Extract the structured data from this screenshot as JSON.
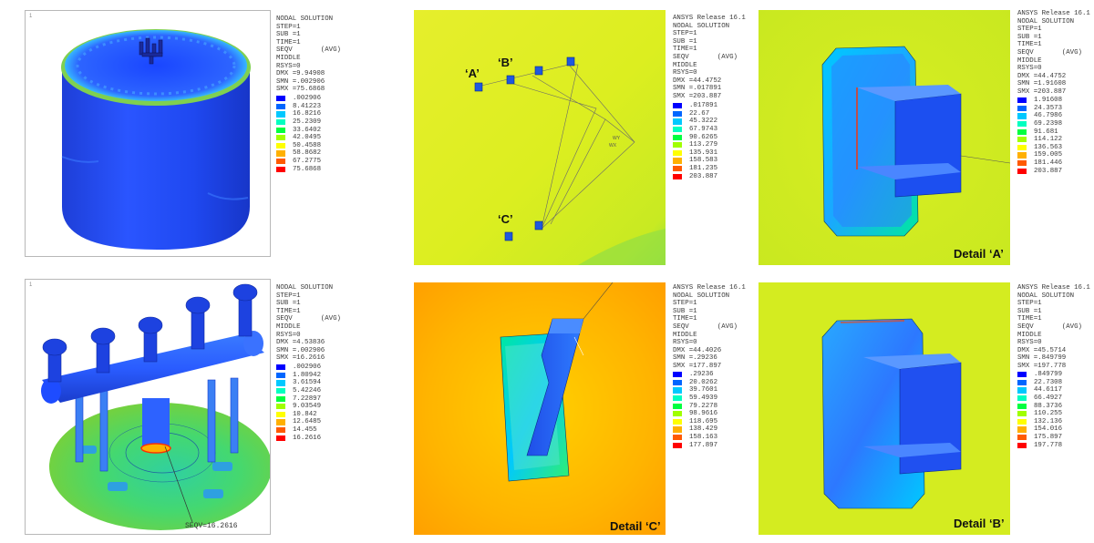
{
  "palette": [
    "#0000ff",
    "#0066ff",
    "#00c8ff",
    "#00ffc0",
    "#00ff40",
    "#a0ff00",
    "#ffff00",
    "#ffb000",
    "#ff5a00",
    "#ff0000"
  ],
  "panels": {
    "tank": {
      "corner": "1",
      "info_lines": [
        "NODAL SOLUTION",
        "STEP=1",
        "SUB =1",
        "TIME=1",
        "SEQV       (AVG)",
        "MIDDLE",
        "RSYS=0",
        "DMX =9.94908",
        "SMN =.002906",
        "SMX =75.6868"
      ],
      "legend": [
        ".002906",
        "8.41223",
        "16.8216",
        "25.2309",
        "33.6402",
        "42.0495",
        "50.4588",
        "58.8682",
        "67.2775",
        "75.6868"
      ]
    },
    "manifold": {
      "corner": "1",
      "info_lines": [
        "NODAL SOLUTION",
        "STEP=1",
        "SUB =1",
        "TIME=1",
        "SEQV       (AVG)",
        "MIDDLE",
        "RSYS=0",
        "DMX =4.53836",
        "SMN =.002906",
        "SMX =16.2616"
      ],
      "legend": [
        ".002906",
        "1.80942",
        "3.61594",
        "5.42246",
        "7.22897",
        "9.03549",
        "10.842",
        "12.6485",
        "14.455",
        "16.2616"
      ],
      "probe": "SEQV=16.2616"
    },
    "supports": {
      "info_lines": [
        "ANSYS Release 16.1",
        "NODAL SOLUTION",
        "STEP=1",
        "SUB =1",
        "TIME=1",
        "SEQV       (AVG)",
        "MIDDLE",
        "RSYS=0",
        "DMX =44.4752",
        "SMN =.017891",
        "SMX =203.887"
      ],
      "legend": [
        ".017891",
        "22.67",
        "45.3222",
        "67.9743",
        "90.6265",
        "113.279",
        "135.931",
        "158.583",
        "181.235",
        "203.887"
      ],
      "labels": [
        "‘A’",
        "‘B’",
        "‘C’"
      ]
    },
    "detail_c": {
      "info_lines": [
        "ANSYS Release 16.1",
        "NODAL SOLUTION",
        "STEP=1",
        "SUB =1",
        "TIME=1",
        "SEQV       (AVG)",
        "MIDDLE",
        "RSYS=0",
        "DMX =44.4026",
        "SMN =.29236",
        "SMX =177.897"
      ],
      "legend": [
        ".29236",
        "20.0262",
        "39.7601",
        "59.4939",
        "79.2278",
        "98.9616",
        "118.695",
        "138.429",
        "158.163",
        "177.897"
      ],
      "label": "Detail ‘C’"
    },
    "detail_a": {
      "info_lines": [
        "ANSYS Release 16.1",
        "NODAL SOLUTION",
        "STEP=1",
        "SUB =1",
        "TIME=1",
        "SEQV       (AVG)",
        "MIDDLE",
        "RSYS=0",
        "DMX =44.4752",
        "SMN =1.91608",
        "SMX =203.887"
      ],
      "legend": [
        "1.91608",
        "24.3573",
        "46.7986",
        "69.2398",
        "91.681",
        "114.122",
        "136.563",
        "159.005",
        "181.446",
        "203.887"
      ],
      "label": "Detail ‘A’"
    },
    "detail_b": {
      "info_lines": [
        "ANSYS Release 16.1",
        "NODAL SOLUTION",
        "STEP=1",
        "SUB =1",
        "TIME=1",
        "SEQV       (AVG)",
        "MIDDLE",
        "RSYS=0",
        "DMX =45.5714",
        "SMN =.849799",
        "SMX =197.778"
      ],
      "legend": [
        ".849799",
        "22.7308",
        "44.6117",
        "66.4927",
        "88.3736",
        "110.255",
        "132.136",
        "154.016",
        "175.897",
        "197.778"
      ],
      "label": "Detail ‘B’"
    }
  }
}
